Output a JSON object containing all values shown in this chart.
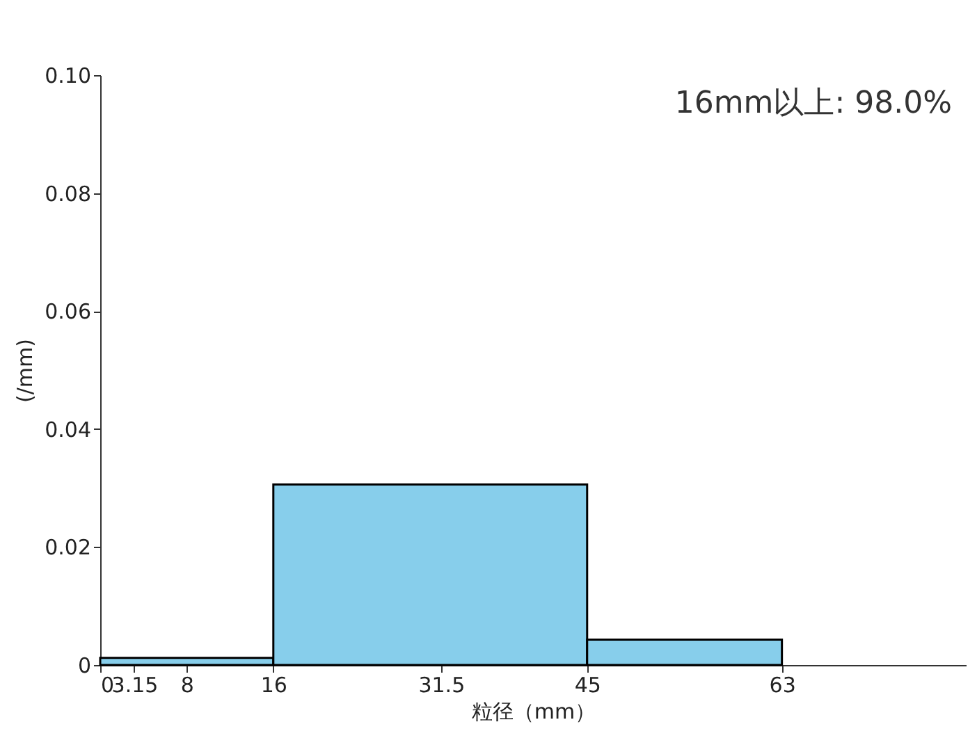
{
  "chart_data": {
    "type": "histogram",
    "xlabel": "粒径（mm）",
    "ylabel": "(/mm)",
    "annotations": [
      "16mm以上: 98.0%"
    ],
    "bins": [
      0,
      16,
      45,
      63
    ],
    "values": [
      0.0012,
      0.0306,
      0.0043
    ],
    "color": "#87ceeb",
    "xlim": [
      0,
      80
    ],
    "xticks": [
      0,
      3.15,
      8,
      16,
      31.5,
      45,
      63
    ],
    "ylim": [
      0,
      0.1
    ],
    "yticks": [
      0,
      0.02,
      0.04,
      0.06,
      0.08,
      {
        "value": 0.1,
        "label": "0.10"
      }
    ],
    "grid": false
  }
}
